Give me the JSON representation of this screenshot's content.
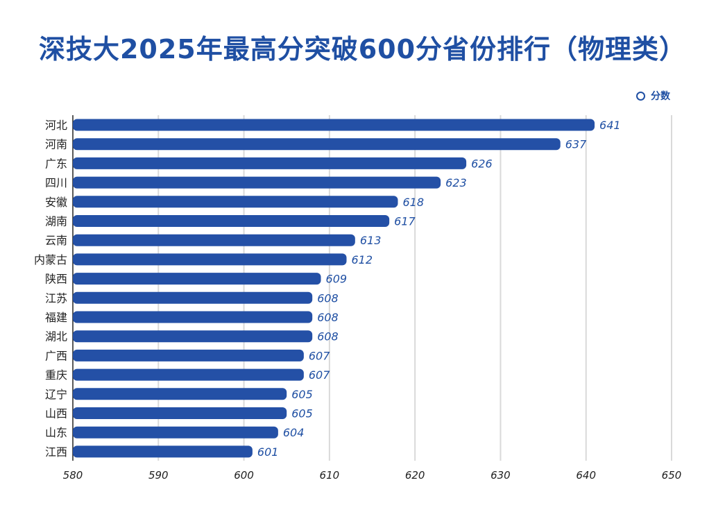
{
  "title": "深技大2025年最高分突破600分省份排行（物理类）",
  "legend": {
    "label": "分数"
  },
  "colors": {
    "bar": "#2450a6",
    "grid": "#d9d9d9",
    "axis": "#222222"
  },
  "chart_data": {
    "type": "bar",
    "orientation": "horizontal",
    "title": "深技大2025年最高分突破600分省份排行（物理类）",
    "categories": [
      "河北",
      "河南",
      "广东",
      "四川",
      "安徽",
      "湖南",
      "云南",
      "内蒙古",
      "陕西",
      "江苏",
      "福建",
      "湖北",
      "广西",
      "重庆",
      "辽宁",
      "山西",
      "山东",
      "江西"
    ],
    "series": [
      {
        "name": "分数",
        "values": [
          641,
          637,
          626,
          623,
          618,
          617,
          613,
          612,
          609,
          608,
          608,
          608,
          607,
          607,
          605,
          605,
          604,
          601
        ]
      }
    ],
    "xlim": [
      580,
      650
    ],
    "xticks": [
      580,
      590,
      600,
      610,
      620,
      630,
      640,
      650
    ],
    "grid": "vertical",
    "legend_position": "top-right"
  }
}
